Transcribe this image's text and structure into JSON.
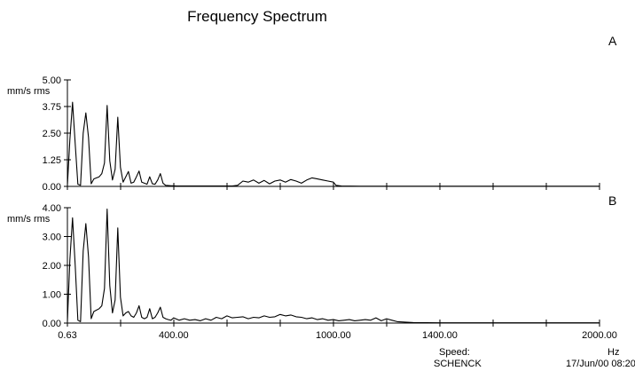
{
  "chart_data": [
    {
      "type": "line",
      "panel_label": "A",
      "title": "Frequency Spectrum",
      "ylabel": "mm/s  rms",
      "xlabel": "Hz",
      "xlim": [
        0.63,
        2000
      ],
      "ylim": [
        0,
        5
      ],
      "y_ticks": [
        0,
        1.25,
        2.5,
        3.75,
        5
      ],
      "y_tick_labels": [
        "0.00",
        "1.25",
        "2.50",
        "3.75",
        "5.00"
      ],
      "series": [
        {
          "x": [
            0.63,
            10,
            20,
            30,
            40,
            50,
            60,
            70,
            80,
            90,
            100,
            110,
            120,
            130,
            140,
            150,
            160,
            170,
            180,
            190,
            200,
            210,
            220,
            230,
            240,
            250,
            260,
            270,
            280,
            290,
            300,
            310,
            320,
            330,
            340,
            350,
            360,
            370,
            380,
            390,
            400,
            410,
            420,
            430,
            440,
            460,
            480,
            500,
            520,
            540,
            560,
            580,
            600,
            620,
            640,
            660,
            680,
            700,
            720,
            740,
            760,
            780,
            800,
            820,
            840,
            860,
            880,
            900,
            920,
            940,
            960,
            980,
            1000,
            1010,
            1030,
            1100,
            1200,
            1300,
            1400,
            1600,
            1800,
            2000
          ],
          "values": [
            0.05,
            2.2,
            3.95,
            2.0,
            0.1,
            0.05,
            2.5,
            3.45,
            2.3,
            0.12,
            0.35,
            0.4,
            0.45,
            0.6,
            1.1,
            3.8,
            1.2,
            0.3,
            0.8,
            3.25,
            0.9,
            0.2,
            0.45,
            0.7,
            0.15,
            0.2,
            0.45,
            0.72,
            0.2,
            0.15,
            0.1,
            0.45,
            0.12,
            0.1,
            0.3,
            0.6,
            0.15,
            0.05,
            0.04,
            0.03,
            0.03,
            0.02,
            0.02,
            0.02,
            0.02,
            0.02,
            0.02,
            0.02,
            0.02,
            0.02,
            0.02,
            0.02,
            0.02,
            0.02,
            0.05,
            0.25,
            0.2,
            0.3,
            0.15,
            0.28,
            0.12,
            0.25,
            0.3,
            0.2,
            0.32,
            0.25,
            0.15,
            0.3,
            0.4,
            0.35,
            0.3,
            0.25,
            0.2,
            0.05,
            0.02,
            0.01,
            0.01,
            0.01,
            0.01,
            0.01,
            0.01,
            0.01
          ]
        }
      ]
    },
    {
      "type": "line",
      "panel_label": "B",
      "ylabel": "mm/s  rms",
      "xlabel": "Hz",
      "xlim": [
        0.63,
        2000
      ],
      "ylim": [
        0,
        4
      ],
      "y_ticks": [
        0,
        1,
        2,
        3,
        4
      ],
      "y_tick_labels": [
        "0.00",
        "1.00",
        "2.00",
        "3.00",
        "4.00"
      ],
      "x_tick_labels": [
        {
          "x": 0.63,
          "label": "0.63"
        },
        {
          "x": 400,
          "label": "400.00"
        },
        {
          "x": 1000,
          "label": "1000.00"
        },
        {
          "x": 1400,
          "label": "1400.00"
        },
        {
          "x": 2000,
          "label": "2000.00"
        }
      ],
      "series": [
        {
          "x": [
            0.63,
            10,
            20,
            30,
            40,
            50,
            60,
            70,
            80,
            90,
            100,
            110,
            120,
            130,
            140,
            150,
            160,
            170,
            180,
            190,
            200,
            210,
            220,
            230,
            240,
            250,
            260,
            270,
            280,
            290,
            300,
            310,
            320,
            330,
            340,
            350,
            360,
            370,
            380,
            390,
            400,
            420,
            440,
            460,
            480,
            500,
            520,
            540,
            560,
            580,
            600,
            620,
            640,
            660,
            680,
            700,
            720,
            740,
            760,
            780,
            800,
            820,
            840,
            860,
            880,
            900,
            920,
            940,
            960,
            980,
            1000,
            1020,
            1040,
            1060,
            1080,
            1100,
            1120,
            1140,
            1160,
            1180,
            1200,
            1220,
            1240,
            1300,
            1400,
            1600,
            1800,
            2000
          ],
          "values": [
            0.05,
            2.2,
            3.65,
            2.0,
            0.1,
            0.05,
            2.5,
            3.45,
            2.3,
            0.15,
            0.4,
            0.45,
            0.5,
            0.6,
            1.2,
            3.95,
            1.3,
            0.35,
            0.8,
            3.3,
            0.9,
            0.25,
            0.35,
            0.4,
            0.25,
            0.2,
            0.35,
            0.6,
            0.2,
            0.15,
            0.2,
            0.5,
            0.15,
            0.2,
            0.35,
            0.55,
            0.2,
            0.15,
            0.12,
            0.1,
            0.18,
            0.1,
            0.15,
            0.1,
            0.12,
            0.08,
            0.15,
            0.1,
            0.2,
            0.15,
            0.25,
            0.18,
            0.2,
            0.22,
            0.15,
            0.2,
            0.18,
            0.25,
            0.2,
            0.22,
            0.3,
            0.25,
            0.28,
            0.22,
            0.2,
            0.15,
            0.18,
            0.12,
            0.15,
            0.1,
            0.12,
            0.08,
            0.1,
            0.12,
            0.08,
            0.1,
            0.12,
            0.1,
            0.18,
            0.08,
            0.15,
            0.1,
            0.05,
            0.02,
            0.01,
            0.01,
            0.01,
            0.01
          ]
        }
      ]
    }
  ],
  "footer": {
    "speed_label": "Speed:",
    "company": "SCHENCK",
    "timestamp": "17/Jun/00 08:20"
  }
}
